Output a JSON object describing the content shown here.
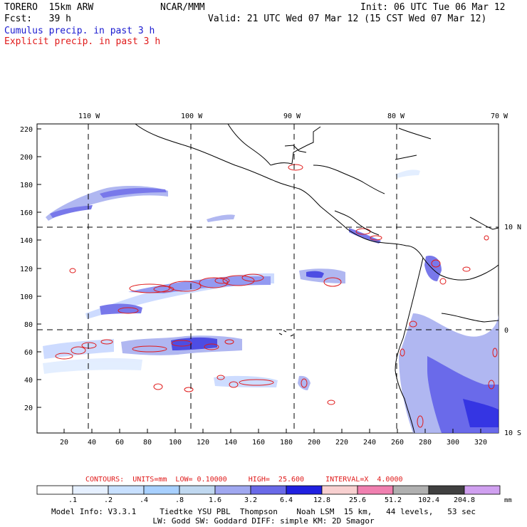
{
  "header": {
    "model": "TORERO  15km ARW",
    "org": "NCAR/MMM",
    "init": "Init: 06 UTC Tue 06 Mar 12",
    "fcst": "Fcst:   39 h",
    "valid": "Valid: 21 UTC Wed 07 Mar 12 (15 CST Wed 07 Mar 12)",
    "line_cumulus": "Cumulus precip. in past 3 h",
    "line_explicit": "Explicit precip. in past 3 h"
  },
  "colors": {
    "cumulus": "#1a1ad0",
    "explicit": "#e01a1a"
  },
  "axes": {
    "lon_labels": [
      "110 W",
      "100 W",
      "90 W",
      "80 W",
      "70 W"
    ],
    "lat_labels": [
      "10 N",
      "0",
      "10 S"
    ],
    "y_ticks": [
      "220",
      "200",
      "180",
      "160",
      "140",
      "120",
      "100",
      "80",
      "60",
      "40",
      "20"
    ],
    "x_ticks": [
      "20",
      "40",
      "60",
      "80",
      "100",
      "120",
      "140",
      "160",
      "180",
      "200",
      "220",
      "240",
      "260",
      "280",
      "300",
      "320"
    ]
  },
  "contours_note": {
    "label": "CONTOURS:  UNITS=mm  LOW= 0.10000     HIGH=  25.600     INTERVAL=X  4.0000"
  },
  "colorbar": {
    "values": [
      ".1",
      ".2",
      ".4",
      ".8",
      "1.6",
      "3.2",
      "6.4",
      "12.8",
      "25.6",
      "51.2",
      "102.4",
      "204.8"
    ],
    "unit": "mm",
    "colors": [
      "#ffffff",
      "#e6f0ff",
      "#c8e0ff",
      "#a8d0ff",
      "#c0d8f0",
      "#a0a8f0",
      "#6a6ae8",
      "#2020e0",
      "#f8d0d0",
      "#f080b0",
      "#b0b0b0",
      "#404040",
      "#d0a0f0"
    ]
  },
  "footer": {
    "line1": "Model Info: V3.3.1     Tiedtke YSU PBL  Thompson    Noah LSM  15 km,   44 levels,   53 sec",
    "line2": "LW: Godd SW: Goddard DIFF: simple KM: 2D Smagor"
  }
}
